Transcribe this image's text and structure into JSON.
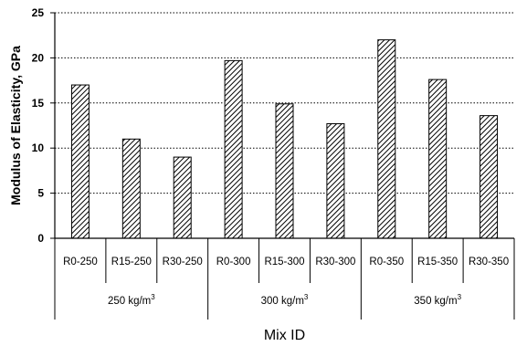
{
  "chart_data": {
    "type": "bar",
    "categories": [
      "R0-250",
      "R15-250",
      "R30-250",
      "R0-300",
      "R15-300",
      "R30-300",
      "R0-350",
      "R15-350",
      "R30-350"
    ],
    "groups": [
      {
        "label": "250 kg/m",
        "sup": "3",
        "categories": [
          "R0-250",
          "R15-250",
          "R30-250"
        ]
      },
      {
        "label": "300 kg/m",
        "sup": "3",
        "categories": [
          "R0-300",
          "R15-300",
          "R30-300"
        ]
      },
      {
        "label": "350 kg/m",
        "sup": "3",
        "categories": [
          "R0-350",
          "R15-350",
          "R30-350"
        ]
      }
    ],
    "values": [
      17,
      11,
      9,
      19.7,
      14.9,
      12.7,
      22,
      17.6,
      13.6
    ],
    "xlabel": "Mix ID",
    "ylabel": "Modulus of Elasticity, GPa",
    "ylim": [
      0,
      25
    ],
    "yticks": [
      0,
      5,
      10,
      15,
      20,
      25
    ],
    "grid": "horizontal-dotted",
    "bar_fill": "diagonal-hatch"
  }
}
